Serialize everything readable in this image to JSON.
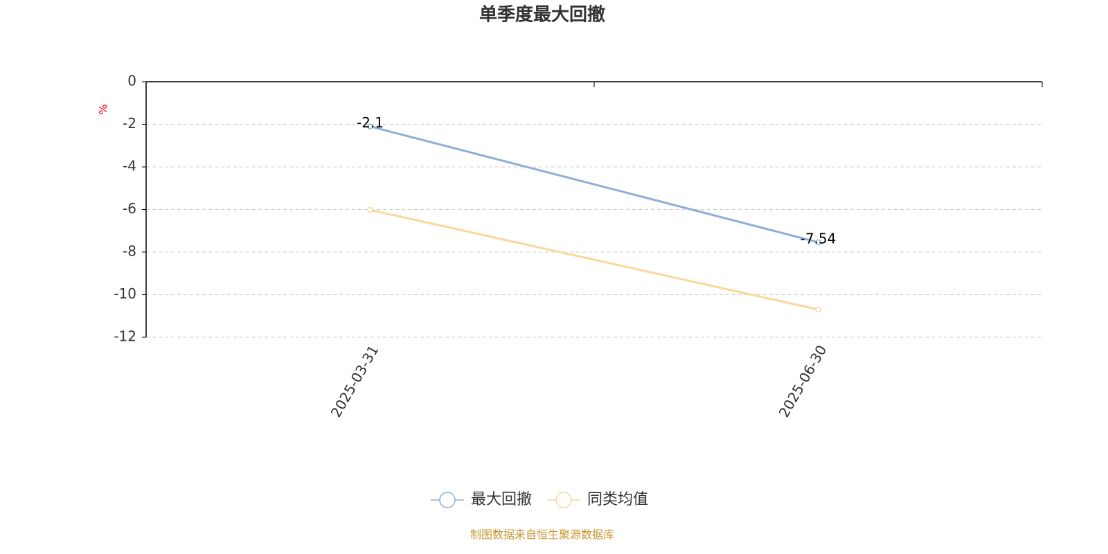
{
  "chart_data": {
    "type": "line",
    "title": "单季度最大回撤",
    "y_label": "%",
    "categories": [
      "2025-03-31",
      "2025-06-30"
    ],
    "series": [
      {
        "name": "最大回撤",
        "color": "#8eaed8",
        "values": [
          -2.1,
          -7.54
        ],
        "labels": true
      },
      {
        "name": "同类均值",
        "color": "#f9d89a",
        "values": [
          -6.02,
          -10.7
        ],
        "labels": false
      }
    ],
    "ylim": [
      -12,
      0
    ],
    "yticks": [
      0,
      -2,
      -4,
      -6,
      -8,
      -10,
      -12
    ],
    "grid": true,
    "legend": "bottom",
    "source": "制图数据来自恒生聚源数据库"
  }
}
